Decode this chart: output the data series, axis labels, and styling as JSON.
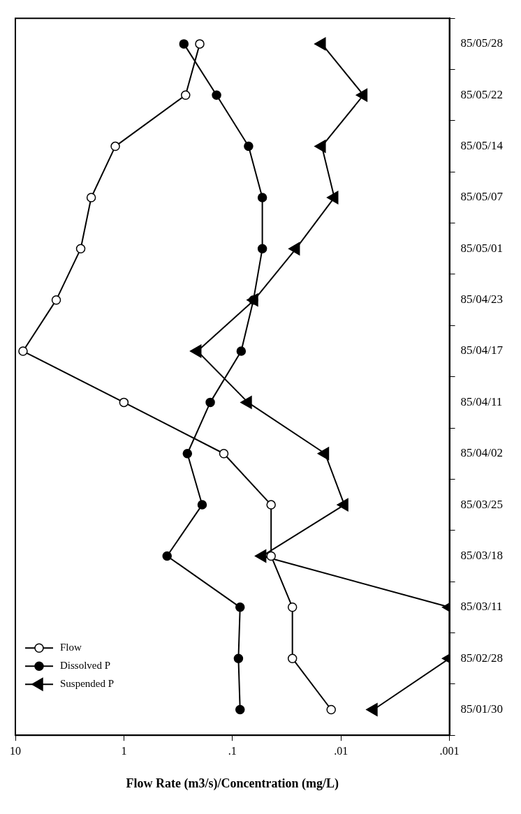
{
  "chart_data": {
    "type": "line",
    "orientation": "horizontal",
    "xlabel": "Flow Rate (m3/s)/Concentration (mg/L)",
    "categories": [
      "85/05/28",
      "85/05/22",
      "85/05/14",
      "85/05/07",
      "85/05/01",
      "85/04/23",
      "85/04/17",
      "85/04/11",
      "85/04/02",
      "85/03/25",
      "85/03/18",
      "85/03/11",
      "85/02/28",
      "85/01/30"
    ],
    "series": [
      {
        "name": "Flow",
        "color": "#000000",
        "marker": "circle",
        "values": [
          0.2,
          0.27,
          1.2,
          2.0,
          2.5,
          4.2,
          8.5,
          1.0,
          0.12,
          0.044,
          0.044,
          0.028,
          0.028,
          0.0123
        ]
      },
      {
        "name": "Dissolved P",
        "color": "#000000",
        "marker": "circle",
        "values": [
          0.28,
          0.14,
          0.071,
          0.053,
          0.053,
          0.064,
          0.083,
          0.16,
          0.26,
          0.19,
          0.4,
          0.085,
          0.088,
          0.085
        ]
      },
      {
        "name": "Suspended P",
        "color": "#000000",
        "marker": "triangle",
        "values": [
          0.015,
          0.0062,
          0.015,
          0.0115,
          0.026,
          0.063,
          0.21,
          0.072,
          0.014,
          0.0093,
          0.053,
          0.001,
          0.001,
          0.005
        ]
      }
    ],
    "log": "x",
    "xlim": [
      10,
      0.001
    ],
    "xticks": [
      10,
      1,
      {
        "value": 0.1,
        "label": ".1"
      },
      {
        "value": 0.01,
        "label": ".01"
      },
      {
        "value": 0.001,
        "label": ".001"
      }
    ],
    "grid": false,
    "legend": "bottom left",
    "line_style": "solid"
  }
}
